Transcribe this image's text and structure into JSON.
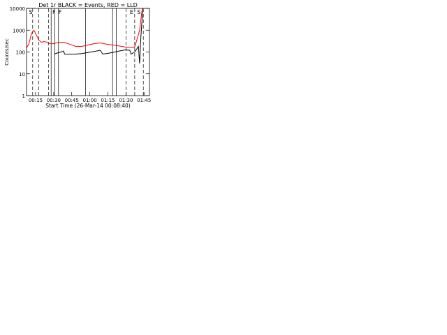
{
  "chart_data": [
    {
      "type": "line",
      "title": "Det 1r BLACK = Events, RED = LLD",
      "xlabel": "Start Time (26-Mar-14 00:08:40)",
      "ylabel": "Counts/sec",
      "xlim": [
        0,
        100
      ],
      "ylim": [
        1,
        10000
      ],
      "yscale": "log",
      "xticklabels": [
        "00:15",
        "00:30",
        "00:45",
        "01:00",
        "01:15",
        "01:30",
        "01:45"
      ],
      "yticklabels": [
        "1",
        "10",
        "100",
        "1000",
        "10000"
      ],
      "region_labels": [
        "S",
        "F",
        "F",
        "E",
        "S"
      ],
      "series": [
        {
          "name": "Events",
          "color": "#000000",
          "x": [
            22.5,
            25,
            27,
            30,
            31,
            35,
            40,
            45,
            50,
            55,
            60,
            62,
            65,
            70,
            75,
            80,
            84,
            85,
            88,
            91,
            92,
            93,
            94,
            94.4
          ],
          "values": [
            80,
            90,
            95,
            110,
            80,
            80,
            80,
            85,
            95,
            105,
            120,
            80,
            85,
            95,
            110,
            125,
            120,
            80,
            100,
            180,
            30,
            500,
            3000,
            10000
          ]
        },
        {
          "name": "LLD",
          "color": "#ff0000",
          "x": [
            0,
            2,
            4,
            6,
            8,
            10,
            12,
            14,
            16,
            18,
            20,
            22,
            24,
            26,
            28,
            30,
            35,
            40,
            45,
            50,
            55,
            60,
            65,
            70,
            75,
            80,
            85,
            88,
            90,
            92,
            93,
            94,
            95
          ],
          "values": [
            150,
            250,
            700,
            1000,
            600,
            350,
            280,
            300,
            290,
            250,
            240,
            240,
            260,
            270,
            280,
            280,
            230,
            180,
            180,
            210,
            240,
            260,
            230,
            210,
            190,
            170,
            160,
            170,
            400,
            1000,
            3000,
            8000,
            10000
          ]
        }
      ],
      "vlines": {
        "dashed": [
          5,
          10,
          18,
          81,
          88,
          95
        ],
        "solid": [
          20,
          23,
          26,
          48,
          70,
          73
        ]
      }
    }
  ],
  "cell_count": 1
}
